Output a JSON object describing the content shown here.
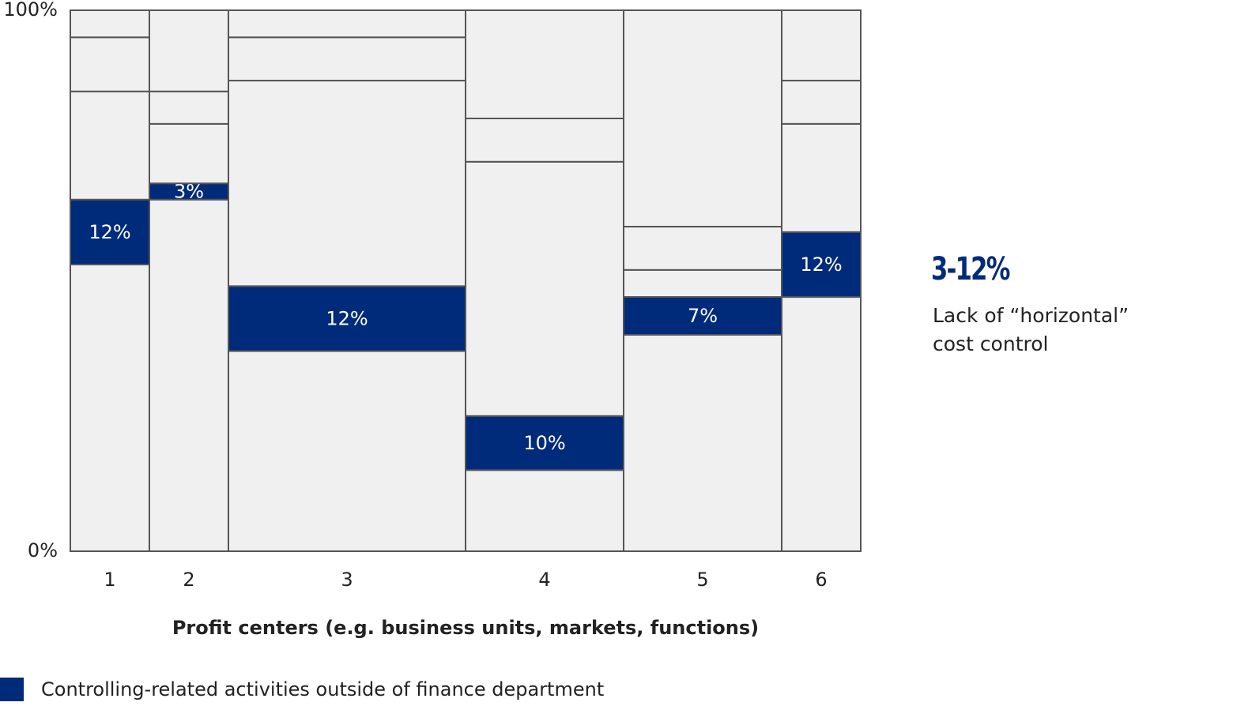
{
  "chart_data": {
    "type": "mekko",
    "categories": [
      "1",
      "2",
      "3",
      "4",
      "5",
      "6"
    ],
    "widths": [
      10,
      10,
      30,
      20,
      20,
      10
    ],
    "x_label": "Profit centers (e.g. business units, markets, functions)",
    "ylim": [
      0,
      100
    ],
    "yticks": [
      {
        "value": 0,
        "label": "0%"
      },
      {
        "value": 100,
        "label": "100%"
      }
    ],
    "series": [
      {
        "color": "#f0f0f0",
        "values": [
          53,
          65,
          37,
          15,
          40,
          47
        ]
      },
      {
        "name": "Controlling-related activities outside of finance department",
        "color": "#002b7a",
        "values": [
          12,
          3,
          12,
          10,
          7,
          12
        ],
        "value_labels": [
          "12%",
          "3%",
          "12%",
          "10%",
          "7%",
          "12%"
        ]
      },
      {
        "color": "#f0f0f0",
        "values": [
          20,
          11,
          38,
          47,
          5,
          20
        ]
      },
      {
        "color": "#f0f0f0",
        "values": [
          10,
          6,
          8,
          8,
          8,
          8
        ]
      },
      {
        "color": "#f0f0f0",
        "values": [
          5,
          15,
          5,
          20,
          40,
          13
        ]
      }
    ],
    "annotation": {
      "headline": "3-12%",
      "text": "Lack of “horizontal” cost control"
    }
  }
}
